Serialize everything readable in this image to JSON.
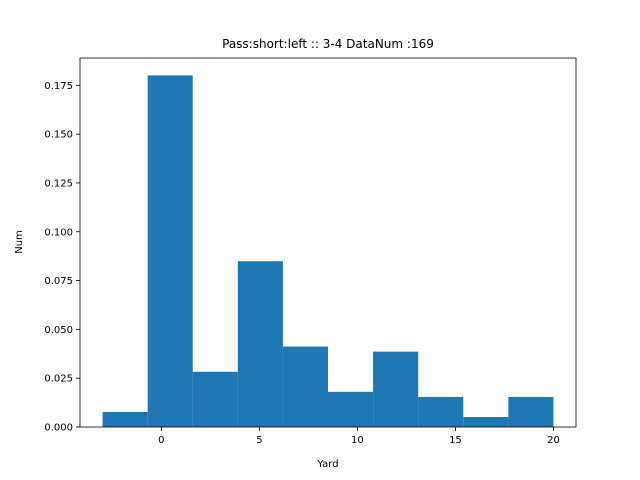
{
  "chart_data": {
    "type": "bar",
    "title": "Pass:short:left :: 3-4    DataNum :169",
    "xlabel": "Yard",
    "ylabel": "Num",
    "bin_edges": [
      -3.0,
      -0.7,
      1.6,
      3.9,
      6.2,
      8.5,
      10.8,
      13.1,
      15.4,
      17.7,
      20.0
    ],
    "values": [
      0.0077,
      0.1801,
      0.0283,
      0.0849,
      0.0412,
      0.018,
      0.0386,
      0.0154,
      0.0051,
      0.0154
    ],
    "xlim": [
      -4.15,
      21.15
    ],
    "ylim": [
      0,
      0.189
    ],
    "xticks": [
      0,
      5,
      10,
      15,
      20
    ],
    "xtick_labels": [
      "0",
      "5",
      "10",
      "15",
      "20"
    ],
    "yticks": [
      0.0,
      0.025,
      0.05,
      0.075,
      0.1,
      0.125,
      0.15,
      0.175
    ],
    "ytick_labels": [
      "0.000",
      "0.025",
      "0.050",
      "0.075",
      "0.100",
      "0.125",
      "0.150",
      "0.175"
    ],
    "bar_color": "#1f77b4",
    "grid": false
  }
}
